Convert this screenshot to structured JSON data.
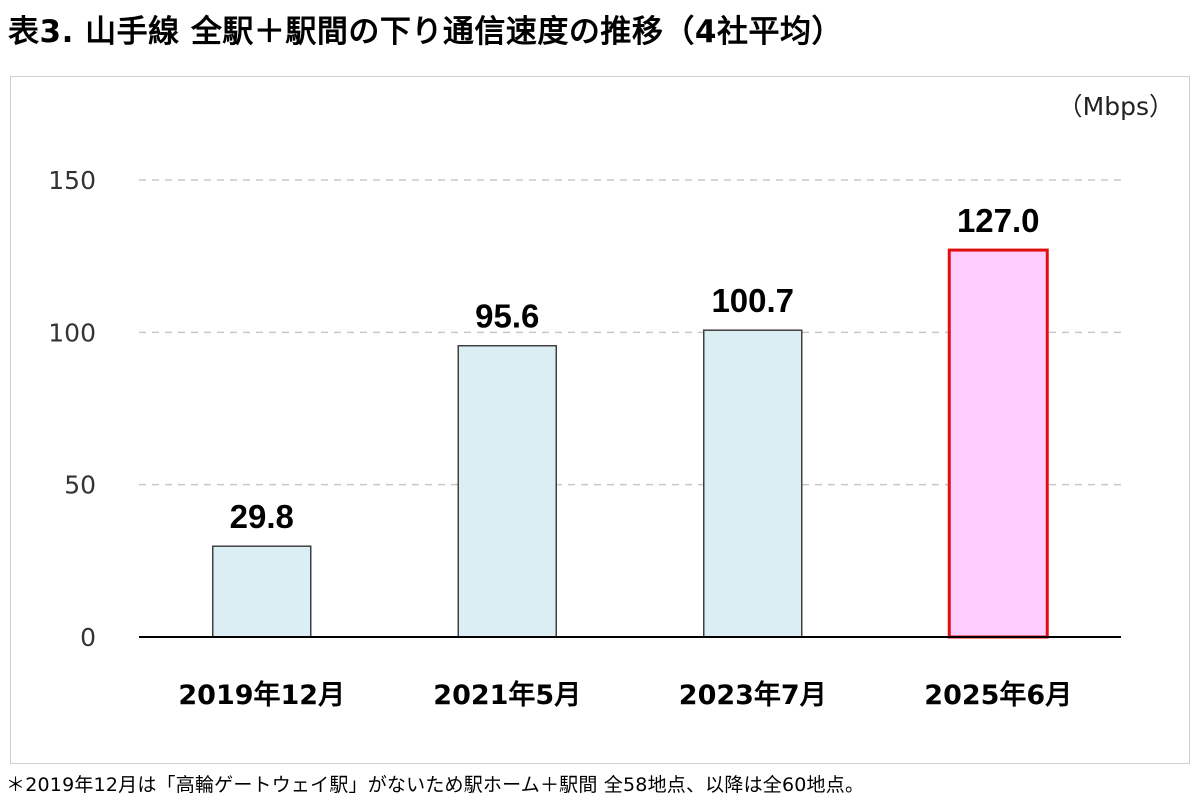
{
  "title": "表3. 山手線 全駅＋駅間の下り通信速度の推移（4社平均）",
  "footnote": "＊2019年12月は「高輪ゲートウェイ駅」がないため駅ホーム＋駅間 全58地点、以降は全60地点。",
  "chart_data": {
    "type": "bar",
    "unit_label": "（Mbps）",
    "categories": [
      "2019年12月",
      "2021年5月",
      "2023年7月",
      "2025年6月"
    ],
    "values": [
      29.8,
      95.6,
      100.7,
      127.0
    ],
    "value_labels": [
      "29.8",
      "95.6",
      "100.7",
      "127.0"
    ],
    "yticks": [
      0,
      50,
      100,
      150
    ],
    "ylim": [
      0,
      150
    ],
    "grid": "dashed horizontal",
    "colors": {
      "bar_fill": "#dbeef4",
      "bar_stroke": "#404040",
      "highlight_fill": "#ffccff",
      "highlight_stroke": "#e01010"
    },
    "highlight_index": 3
  }
}
